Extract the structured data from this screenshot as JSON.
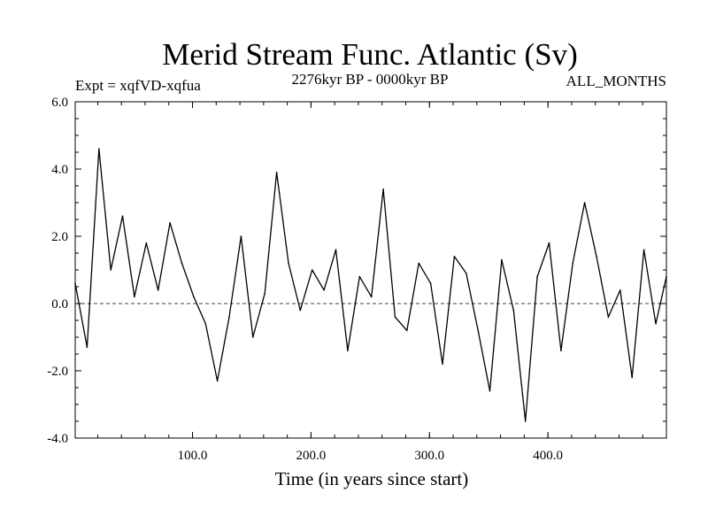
{
  "chart_data": {
    "type": "line",
    "title": "Merid Stream Func. Atlantic (Sv)",
    "subtitle_left": "Expt = xqfVD-xqfua",
    "subtitle_center": "2276kyr BP - 0000kyr BP",
    "subtitle_right": "ALL_MONTHS",
    "xlabel": "Time (in years since start)",
    "ylabel": "",
    "xlim": [
      1,
      500
    ],
    "ylim": [
      -4.0,
      6.0
    ],
    "xticks": [
      100,
      200,
      300,
      400
    ],
    "xtick_labels": [
      "100.0",
      "200.0",
      "300.0",
      "400.0"
    ],
    "yticks": [
      -4,
      -2,
      0,
      2,
      4,
      6
    ],
    "ytick_labels": [
      "-4.0",
      "-2.0",
      "0.0",
      "2.0",
      "4.0",
      "6.0"
    ],
    "reference_line": 0.0,
    "x_step": 10,
    "x_start": 1,
    "series": [
      {
        "name": "Merid Stream Func. Atlantic",
        "x": [
          1,
          11,
          21,
          31,
          41,
          51,
          61,
          71,
          81,
          91,
          101,
          111,
          121,
          131,
          141,
          151,
          161,
          171,
          181,
          191,
          201,
          211,
          221,
          231,
          241,
          251,
          261,
          271,
          281,
          291,
          301,
          311,
          321,
          331,
          341,
          351,
          361,
          371,
          381,
          391,
          401,
          411,
          421,
          431,
          441,
          451,
          461,
          471,
          481,
          491,
          500
        ],
        "values": [
          0.6,
          -1.3,
          4.6,
          1.0,
          2.6,
          0.2,
          1.8,
          0.4,
          2.4,
          1.2,
          0.2,
          -0.6,
          -2.3,
          -0.4,
          2.0,
          -1.0,
          0.3,
          3.9,
          1.2,
          -0.2,
          1.0,
          0.4,
          1.6,
          -1.4,
          0.8,
          0.2,
          3.4,
          -0.4,
          -0.8,
          1.2,
          0.6,
          -1.8,
          1.4,
          0.9,
          -0.8,
          -2.6,
          1.3,
          -0.2,
          -3.5,
          0.8,
          1.8,
          -1.4,
          1.2,
          3.0,
          1.4,
          -0.4,
          0.4,
          -2.2,
          1.6,
          -0.6,
          0.8
        ]
      }
    ]
  }
}
